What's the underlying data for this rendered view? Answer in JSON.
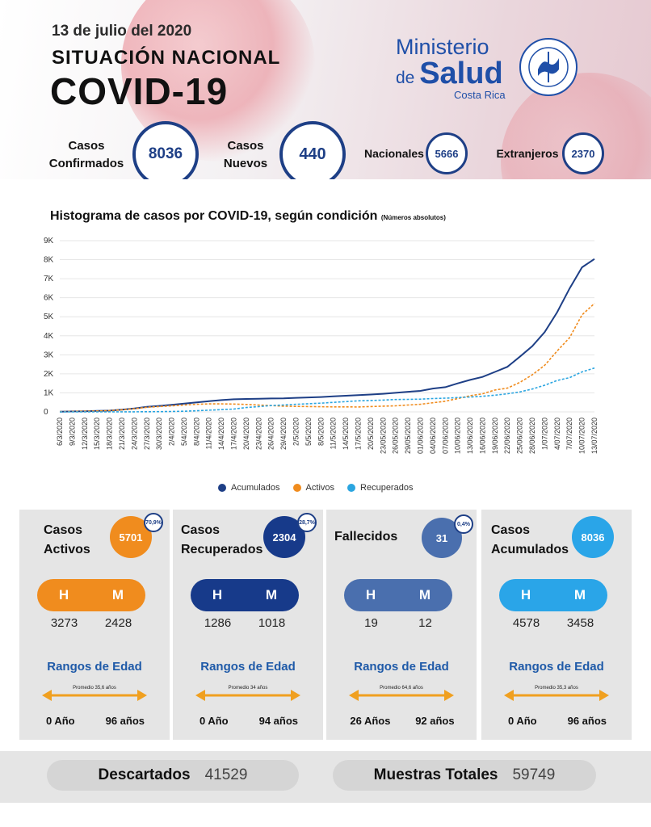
{
  "header": {
    "date": "13 de julio del 2020",
    "title_line1": "SITUACIÓN NACIONAL",
    "title_line2": "COVID-19",
    "ministry_line1": "Ministerio",
    "ministry_de": "de",
    "ministry_salud": "Salud",
    "ministry_country": "Costa Rica"
  },
  "summary": {
    "confirmed_label_1": "Casos",
    "confirmed_label_2": "Confirmados",
    "confirmed_value": "8036",
    "new_label_1": "Casos",
    "new_label_2": "Nuevos",
    "new_value": "440",
    "nacionales_label": "Nacionales",
    "nacionales_value": "5666",
    "extranjeros_label": "Extranjeros",
    "extranjeros_value": "2370"
  },
  "chart_title": "Histograma de casos por COVID-19, según condición",
  "chart_subtitle": "(Números absolutos)",
  "chart_data": {
    "type": "line",
    "title": "Histograma de casos por COVID-19, según condición",
    "subtitle": "(Números absolutos)",
    "ylim": [
      0,
      9000
    ],
    "y_ticks": [
      "0",
      "1K",
      "2K",
      "3K",
      "4K",
      "5K",
      "6K",
      "7K",
      "8K",
      "9K"
    ],
    "grid": true,
    "legend_position": "bottom",
    "categories": [
      "6/3/2020",
      "9/3/2020",
      "12/3/2020",
      "15/3/2020",
      "18/3/2020",
      "21/3/2020",
      "24/3/2020",
      "27/3/2020",
      "30/3/2020",
      "2/4/2020",
      "5/4/2020",
      "8/4/2020",
      "11/4/2020",
      "14/4/2020",
      "17/4/2020",
      "20/4/2020",
      "23/4/2020",
      "26/4/2020",
      "29/4/2020",
      "2/5/2020",
      "5/5/2020",
      "8/5/2020",
      "11/5/2020",
      "14/5/2020",
      "17/5/2020",
      "20/5/2020",
      "23/05/2020",
      "26/05/2020",
      "29/05/2020",
      "01/06/2020",
      "04/06/2020",
      "07/06/2020",
      "10/06/2020",
      "13/06/2020",
      "16/06/2020",
      "19/06/2020",
      "22/06/2020",
      "25/06/2020",
      "28/06/2020",
      "1/07/2020",
      "4/07/2020",
      "7/07/2020",
      "10/07/2020",
      "13/07/2020"
    ],
    "series": [
      {
        "name": "Acumulados",
        "color": "#1e3f86",
        "style": "solid",
        "values": [
          9,
          26,
          35,
          50,
          69,
          117,
          177,
          263,
          314,
          375,
          435,
          502,
          559,
          618,
          662,
          681,
          693,
          705,
          713,
          739,
          761,
          780,
          815,
          851,
          882,
          911,
          951,
          1000,
          1056,
          1105,
          1228,
          1300,
          1500,
          1680,
          1840,
          2100,
          2370,
          2900,
          3450,
          4200,
          5240,
          6485,
          7600,
          8036
        ]
      },
      {
        "name": "Activos",
        "color": "#f08c1e",
        "style": "dashed",
        "values": [
          9,
          26,
          35,
          48,
          66,
          110,
          165,
          240,
          280,
          320,
          360,
          400,
          420,
          420,
          410,
          390,
          360,
          330,
          300,
          290,
          280,
          270,
          265,
          262,
          258,
          280,
          300,
          320,
          360,
          400,
          480,
          560,
          700,
          850,
          950,
          1150,
          1250,
          1550,
          1950,
          2450,
          3200,
          3900,
          5100,
          5701
        ]
      },
      {
        "name": "Recuperados",
        "color": "#2aa5e0",
        "style": "dashed",
        "values": [
          0,
          0,
          0,
          1,
          2,
          4,
          6,
          8,
          12,
          20,
          35,
          60,
          90,
          120,
          150,
          230,
          280,
          330,
          360,
          400,
          430,
          460,
          500,
          540,
          580,
          600,
          620,
          650,
          660,
          670,
          700,
          720,
          750,
          780,
          820,
          880,
          950,
          1050,
          1200,
          1400,
          1650,
          1800,
          2100,
          2304
        ]
      }
    ]
  },
  "legend": [
    "Acumulados",
    "Activos",
    "Recuperados"
  ],
  "cards": [
    {
      "label1": "Casos",
      "label2": "Activos",
      "value": "5701",
      "pct": "70,9%",
      "color": "#f08c1e",
      "h": "H",
      "m": "M",
      "h_value": "3273",
      "m_value": "2428",
      "age_title": "Rangos de Edad",
      "promedio": "Promedio 35,6 años",
      "age_min": "0 Año",
      "age_max": "96 años"
    },
    {
      "label1": "Casos",
      "label2": "Recuperados",
      "value": "2304",
      "pct": "28,7%",
      "color": "#173a8a",
      "h": "H",
      "m": "M",
      "h_value": "1286",
      "m_value": "1018",
      "age_title": "Rangos de Edad",
      "promedio": "Promedio 34 años",
      "age_min": "0 Año",
      "age_max": "94 años"
    },
    {
      "label1": "Fallecidos",
      "label2": "",
      "value": "31",
      "pct": "0,4%",
      "color": "#4a6fae",
      "h": "H",
      "m": "M",
      "h_value": "19",
      "m_value": "12",
      "age_title": "Rangos de Edad",
      "promedio": "Promedio 64,6 años",
      "age_min": "26 Años",
      "age_max": "92 años"
    },
    {
      "label1": "Casos",
      "label2": "Acumulados",
      "value": "8036",
      "pct": "",
      "color": "#2aa5e8",
      "h": "H",
      "m": "M",
      "h_value": "4578",
      "m_value": "3458",
      "age_title": "Rangos de Edad",
      "promedio": "Promedio 35,3 años",
      "age_min": "0 Año",
      "age_max": "96 años"
    }
  ],
  "footer": {
    "discarded_label": "Descartados",
    "discarded_value": "41529",
    "samples_label": "Muestras Totales",
    "samples_value": "59749"
  }
}
